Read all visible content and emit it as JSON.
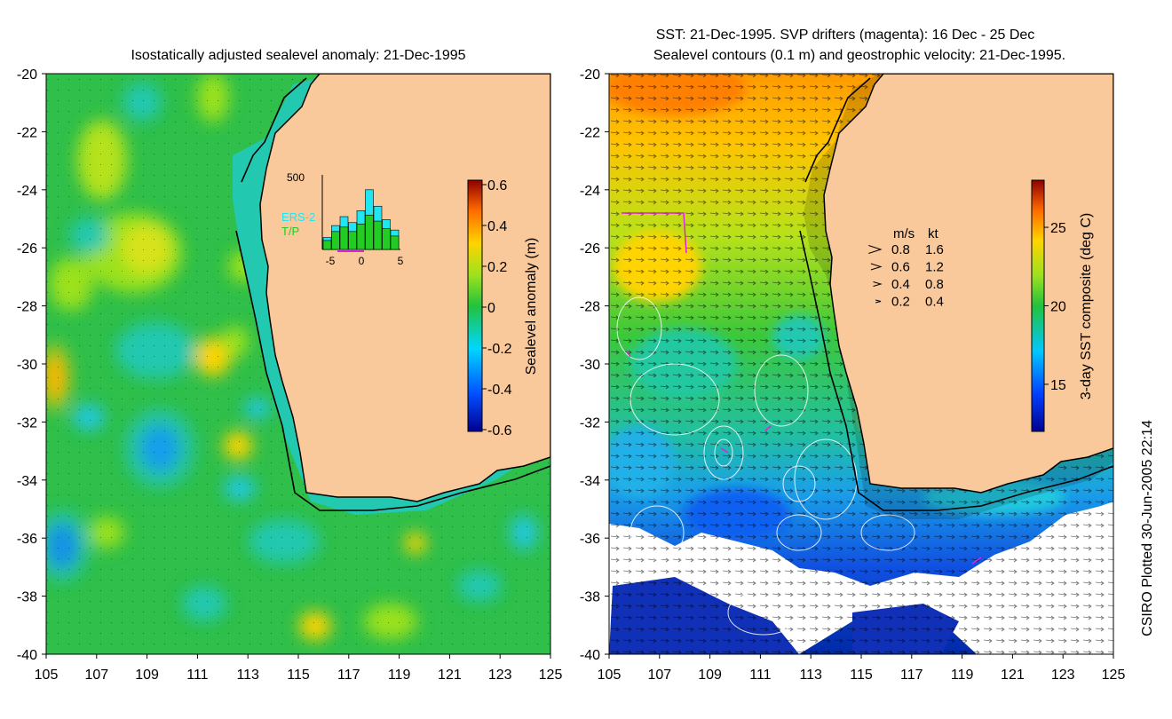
{
  "left_map": {
    "title": "Isostatically adjusted sealevel anomaly: 21-Dec-1995",
    "colorbar": {
      "label": "Sealevel anomaly (m)",
      "range": [
        -0.6,
        0.6
      ],
      "ticks": [
        "0.6",
        "0.4",
        "0.2",
        "0",
        "-0.2",
        "-0.4",
        "-0.6"
      ]
    },
    "inset_histogram": {
      "ymax_label": "500",
      "xticks": [
        "-5",
        "0",
        "5"
      ],
      "series": [
        {
          "name": "ERS-2",
          "color": "#22e5f2"
        },
        {
          "name": "T/P",
          "color": "#22cc22"
        }
      ],
      "ers2_counts": [
        80,
        160,
        220,
        180,
        260,
        400,
        290,
        200,
        130
      ],
      "tp_counts": [
        60,
        120,
        150,
        120,
        170,
        230,
        190,
        140,
        90
      ]
    }
  },
  "right_map": {
    "title_line1": "SST: 21-Dec-1995. SVP drifters (magenta): 16 Dec - 25 Dec",
    "title_line2": "Sealevel contours (0.1 m) and geostrophic velocity: 21-Dec-1995.",
    "colorbar": {
      "label": "3-day SST composite (deg C)",
      "range": [
        12,
        28
      ],
      "ticks": [
        "25",
        "20",
        "15"
      ]
    },
    "velocity_legend": {
      "headers": [
        "m/s",
        "kt"
      ],
      "rows": [
        {
          "ms": "0.8",
          "kt": "1.6"
        },
        {
          "ms": "0.6",
          "kt": "1.2"
        },
        {
          "ms": "0.4",
          "kt": "0.8"
        },
        {
          "ms": "0.2",
          "kt": "0.4"
        }
      ]
    }
  },
  "axes": {
    "lat_ticks": [
      "-20",
      "-22",
      "-24",
      "-26",
      "-28",
      "-30",
      "-32",
      "-34",
      "-36",
      "-38",
      "-40"
    ],
    "lon_ticks": [
      "105",
      "107",
      "109",
      "111",
      "113",
      "115",
      "117",
      "119",
      "121",
      "123",
      "125"
    ],
    "lat_range": [
      -40,
      -20
    ],
    "lon_range": [
      105,
      125
    ]
  },
  "colors": {
    "land": "#f9c89b",
    "coast": "#000000",
    "shelf": "#22c8b0",
    "ocean_base": "#2fbf4a",
    "drifter": "#e020e0"
  },
  "side_credit": "CSIRO Plotted 30-Jun-2005 22:14"
}
